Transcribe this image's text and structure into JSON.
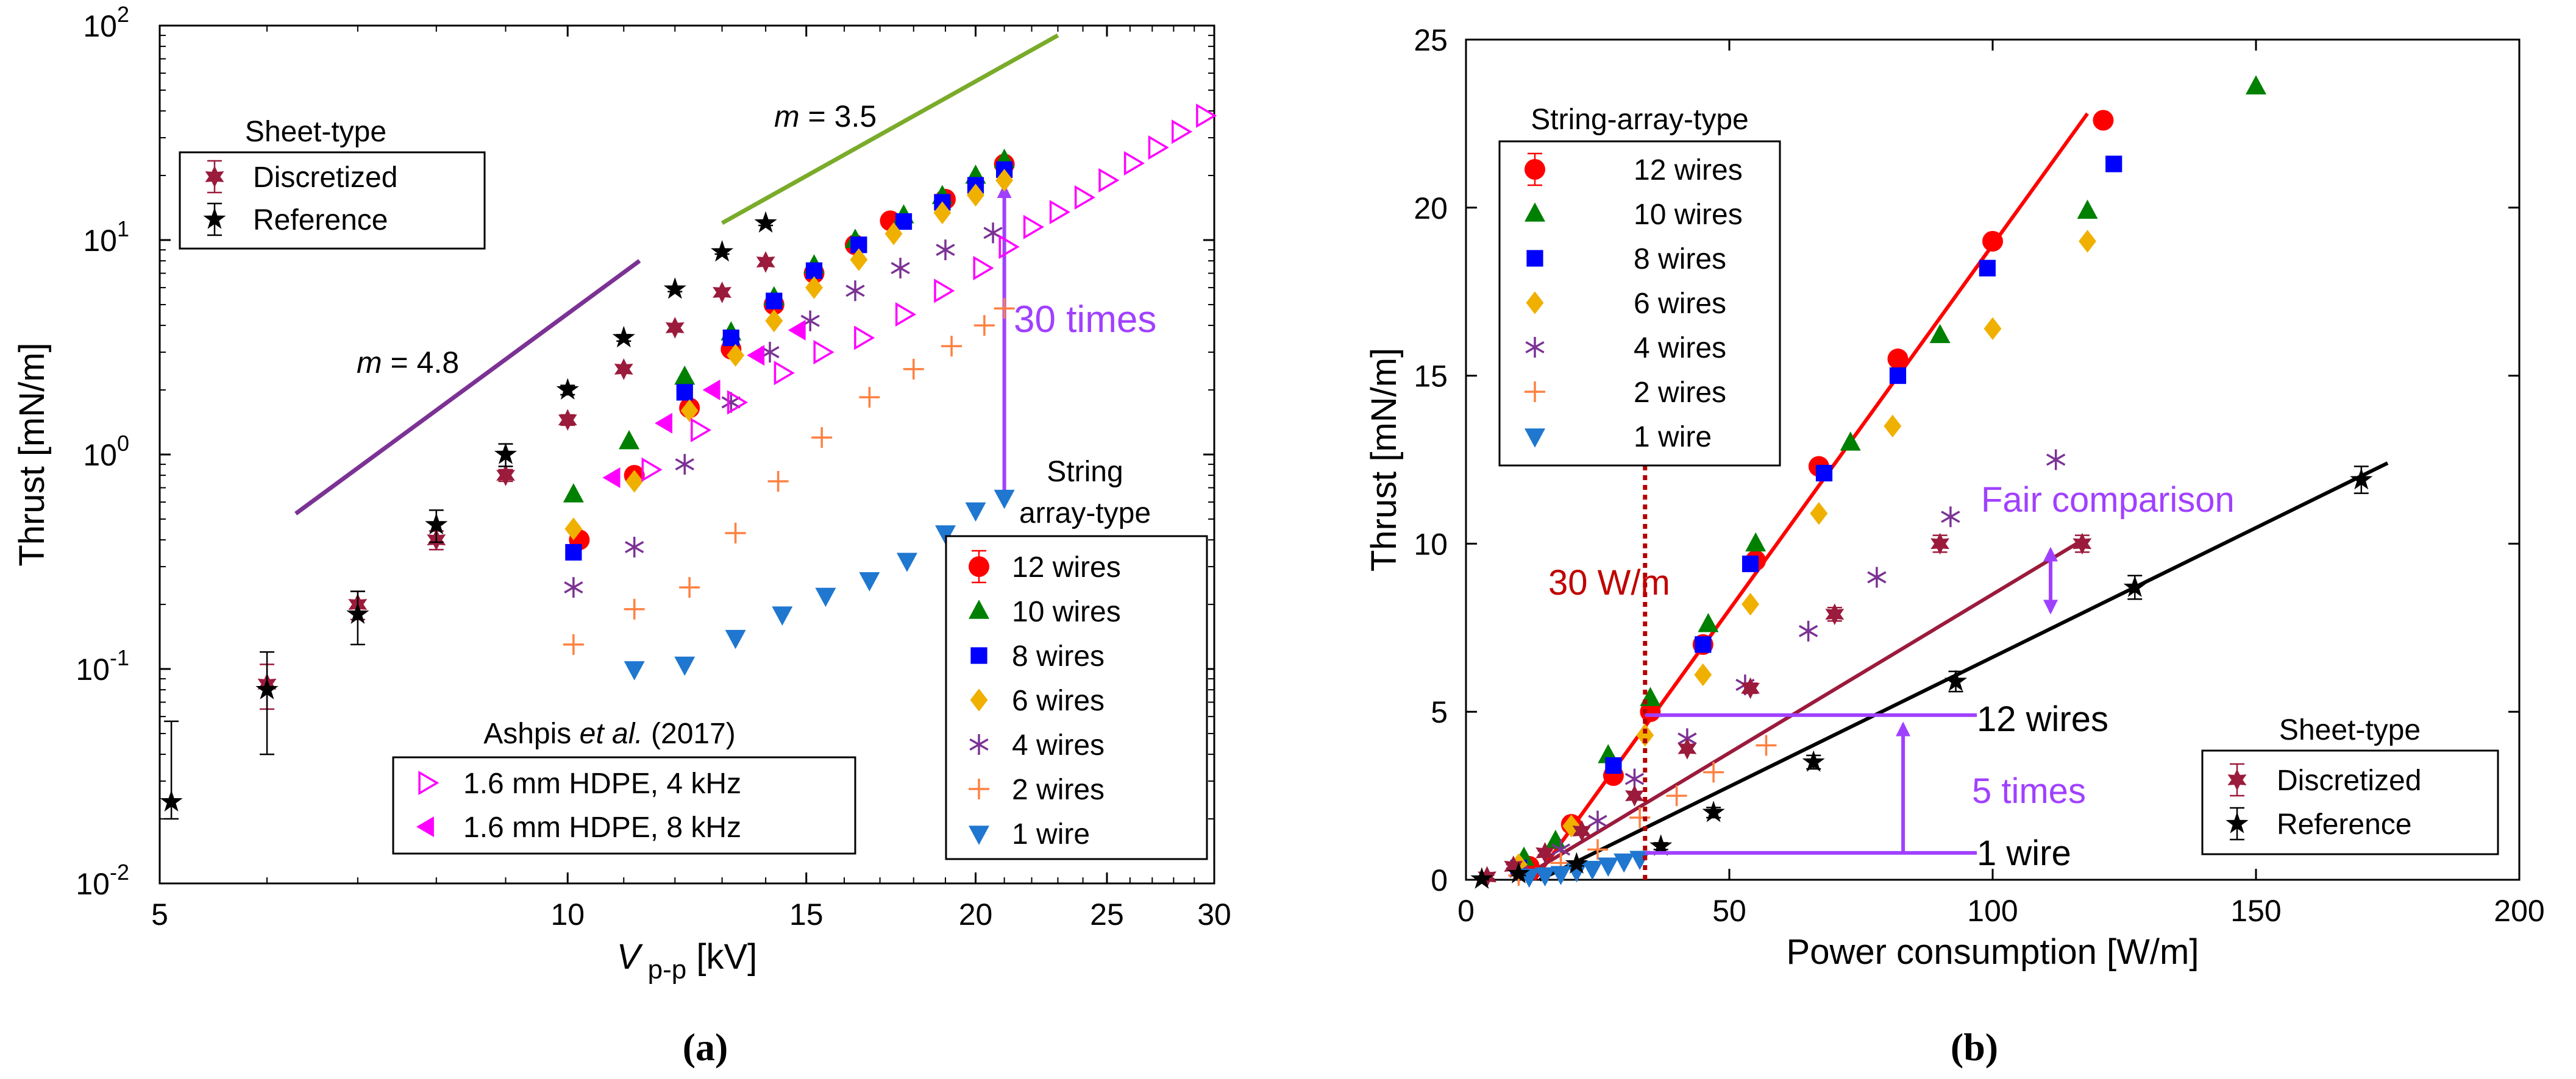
{
  "chart_data": [
    {
      "id": "a",
      "type": "scatter",
      "panel_label": "(a)",
      "xscale": "log",
      "yscale": "log",
      "xlim": [
        5,
        30
      ],
      "ylim": [
        0.01,
        100
      ],
      "xlabel_main": "V",
      "xlabel_sub": "p-p",
      "xlabel_unit": " [kV]",
      "ylabel": "Thrust [mN/m]",
      "xticks": [
        5,
        10,
        15,
        20,
        25,
        30
      ],
      "xtick_labels": [
        "5",
        "10",
        "15",
        "20",
        "25",
        "30"
      ],
      "yticks": [
        0.01,
        0.1,
        1,
        10,
        100
      ],
      "ytick_base": "10",
      "ytick_exps": [
        "-2",
        "-1",
        "0",
        "1",
        "2"
      ],
      "legend_sheet_title": "Sheet-type",
      "legend_string_title_1": "String",
      "legend_string_title_2": "array-type",
      "legend_ashpis_title_prefix": "Ashpis ",
      "legend_ashpis_title_etal": "et al.",
      "legend_ashpis_title_suffix": " (2017)",
      "series": [
        {
          "name": "Discretized",
          "group": "sheet",
          "marker": "hexstar",
          "color": "#9b1b3c",
          "x": [
            6.0,
            7.0,
            8.0,
            9.0,
            10.0,
            11.0,
            12.0,
            13.0,
            14.0
          ],
          "y": [
            0.085,
            0.2,
            0.4,
            0.8,
            1.45,
            2.5,
            3.9,
            5.7,
            7.9
          ],
          "err": [
            0.02,
            0.03,
            0.04,
            0.05,
            0.08,
            0.1,
            0.15,
            0.2,
            0.25
          ]
        },
        {
          "name": "Reference",
          "group": "sheet",
          "marker": "star",
          "color": "#000000",
          "x": [
            5.1,
            6.0,
            7.0,
            8.0,
            9.0,
            10.0,
            11.0,
            12.0,
            13.0,
            14.0
          ],
          "y": [
            0.024,
            0.08,
            0.18,
            0.47,
            1.0,
            2.0,
            3.5,
            5.9,
            8.8,
            12.0
          ],
          "err": [
            0.033,
            0.04,
            0.05,
            0.08,
            0.12,
            0.1,
            0.12,
            0.15,
            0.2,
            0.3
          ]
        },
        {
          "name": "12 wires",
          "group": "string",
          "marker": "circle",
          "color": "#ff0000",
          "x": [
            10.2,
            11.2,
            12.3,
            13.2,
            14.2,
            15.2,
            16.3,
            17.3,
            19.0,
            21.0
          ],
          "y": [
            0.4,
            0.8,
            1.65,
            3.1,
            5.0,
            7.0,
            9.5,
            12.3,
            15.5,
            22.6
          ]
        },
        {
          "name": "10 wires",
          "group": "string",
          "marker": "triangle-up",
          "color": "#008000",
          "x": [
            10.1,
            11.1,
            12.2,
            13.2,
            14.2,
            15.2,
            16.3,
            17.7,
            18.9,
            20.0,
            21.0
          ],
          "y": [
            0.65,
            1.15,
            2.3,
            3.7,
            5.4,
            7.6,
            10.0,
            13.0,
            16.0,
            19.9,
            23.6
          ]
        },
        {
          "name": "8 wires",
          "group": "string",
          "marker": "square",
          "color": "#0000ff",
          "x": [
            10.1,
            12.2,
            13.2,
            14.2,
            15.2,
            16.4,
            17.7,
            18.9,
            20.0,
            21.0
          ],
          "y": [
            0.35,
            1.95,
            3.5,
            5.2,
            7.2,
            9.5,
            12.2,
            15.0,
            18.0,
            21.3
          ]
        },
        {
          "name": "6 wires",
          "group": "string",
          "marker": "diamond",
          "color": "#f0b000",
          "x": [
            10.1,
            11.2,
            12.3,
            13.3,
            14.2,
            15.2,
            16.4,
            17.4,
            18.9,
            20.0,
            21.0
          ],
          "y": [
            0.45,
            0.75,
            1.6,
            2.9,
            4.2,
            6.0,
            8.1,
            10.7,
            13.4,
            16.2,
            19.0
          ]
        },
        {
          "name": "4 wires",
          "group": "string",
          "marker": "asterisk",
          "color": "#7b3294",
          "x": [
            10.1,
            11.2,
            12.2,
            13.2,
            14.1,
            15.1,
            16.3,
            17.6,
            19.0,
            20.6
          ],
          "y": [
            0.24,
            0.37,
            0.9,
            1.75,
            3.0,
            4.2,
            5.8,
            7.4,
            9.0,
            10.8
          ]
        },
        {
          "name": "2 wires",
          "group": "string",
          "marker": "plus",
          "color": "#ff8040",
          "x": [
            10.1,
            11.2,
            12.3,
            13.3,
            14.3,
            15.4,
            16.7,
            18.0,
            19.2,
            20.3,
            21.0
          ],
          "y": [
            0.13,
            0.19,
            0.24,
            0.43,
            0.75,
            1.2,
            1.85,
            2.5,
            3.2,
            4.0,
            4.8
          ]
        },
        {
          "name": "1 wire",
          "group": "string",
          "marker": "triangle-down",
          "color": "#1f77d0",
          "x": [
            11.2,
            12.2,
            13.3,
            14.4,
            15.5,
            16.7,
            17.8,
            19.0,
            20.0,
            21.0
          ],
          "y": [
            0.1,
            0.105,
            0.14,
            0.18,
            0.22,
            0.26,
            0.32,
            0.43,
            0.55,
            0.63
          ]
        },
        {
          "name": "1.6 mm HDPE, 4 kHz",
          "group": "ashpis",
          "marker": "tri-right-open",
          "color": "#ff00ff",
          "x": [
            11.5,
            12.5,
            13.3,
            14.4,
            15.4,
            16.5,
            17.7,
            18.9,
            20.2,
            21.1,
            22.0,
            23.0,
            24.0,
            25.0,
            26.1,
            27.2,
            28.3,
            29.5
          ],
          "y": [
            0.85,
            1.3,
            1.75,
            2.4,
            3.0,
            3.5,
            4.5,
            5.8,
            7.4,
            9.3,
            11.5,
            13.5,
            15.8,
            19.0,
            22.8,
            27.0,
            32.0,
            38.0
          ]
        },
        {
          "name": "1.6 mm HDPE, 8 kHz",
          "group": "ashpis",
          "marker": "tri-left",
          "color": "#ff00ff",
          "x": [
            10.8,
            11.8,
            12.8,
            13.8,
            14.8
          ],
          "y": [
            0.78,
            1.4,
            2.0,
            2.9,
            3.8
          ]
        }
      ],
      "annotations": {
        "slope1_m": "m",
        "slope1_value": " = 4.8",
        "slope2_m": "m",
        "slope2_value": " = 3.5",
        "times_label": "30 times",
        "slope1_line": {
          "x": [
            6.3,
            11.3
          ],
          "y": [
            0.53,
            8.0
          ]
        },
        "slope2_line": {
          "x": [
            13.0,
            23.0
          ],
          "y": [
            12.0,
            90.0
          ]
        },
        "arrow": {
          "x": 21.0,
          "y_from": 0.63,
          "y_to": 19.0
        }
      }
    },
    {
      "id": "b",
      "type": "scatter",
      "panel_label": "(b)",
      "xscale": "linear",
      "yscale": "linear",
      "xlim": [
        0,
        200
      ],
      "ylim": [
        0,
        25
      ],
      "xlabel": "Power consumption [W/m]",
      "ylabel": "Thrust [mN/m]",
      "xticks": [
        0,
        50,
        100,
        150,
        200
      ],
      "xtick_labels": [
        "0",
        "50",
        "100",
        "150",
        "200"
      ],
      "yticks": [
        0,
        5,
        10,
        15,
        20,
        25
      ],
      "ytick_labels": [
        "0",
        "5",
        "10",
        "15",
        "20",
        "25"
      ],
      "legend_string_title": "String-array-type",
      "legend_sheet_title": "Sheet-type",
      "series": [
        {
          "name": "12 wires",
          "group": "string",
          "marker": "circle",
          "color": "#ff0000",
          "x": [
            12,
            20,
            28,
            35,
            45,
            55,
            67,
            82,
            100,
            121
          ],
          "y": [
            0.4,
            1.65,
            3.1,
            5.0,
            7.0,
            9.5,
            12.3,
            15.5,
            19.0,
            22.6
          ]
        },
        {
          "name": "10 wires",
          "group": "string",
          "marker": "triangle-up",
          "color": "#008000",
          "x": [
            11,
            17,
            27,
            35,
            46,
            55,
            73,
            90,
            118,
            150
          ],
          "y": [
            0.65,
            1.15,
            3.7,
            5.4,
            7.6,
            10.0,
            13.0,
            16.2,
            19.9,
            23.6
          ]
        },
        {
          "name": "8 wires",
          "group": "string",
          "marker": "square",
          "color": "#0000ff",
          "x": [
            10,
            28,
            45,
            54,
            68,
            82,
            99,
            123
          ],
          "y": [
            0.35,
            3.4,
            7.0,
            9.4,
            12.1,
            15.0,
            18.2,
            21.3
          ]
        },
        {
          "name": "6 wires",
          "group": "string",
          "marker": "diamond",
          "color": "#f0b000",
          "x": [
            10,
            20,
            34,
            45,
            54,
            67,
            81,
            100,
            118
          ],
          "y": [
            0.45,
            1.6,
            4.3,
            6.1,
            8.2,
            10.9,
            13.5,
            16.4,
            19.0
          ]
        },
        {
          "name": "4 wires",
          "group": "string",
          "marker": "asterisk",
          "color": "#7b3294",
          "x": [
            10,
            18,
            25,
            32,
            42,
            53,
            65,
            78,
            92,
            112
          ],
          "y": [
            0.24,
            0.9,
            1.75,
            3.0,
            4.2,
            5.8,
            7.4,
            9.0,
            10.8,
            12.5
          ]
        },
        {
          "name": "2 wires",
          "group": "string",
          "marker": "plus",
          "color": "#ff8040",
          "x": [
            10,
            18,
            25,
            33,
            40,
            47,
            57
          ],
          "y": [
            0.13,
            0.5,
            0.9,
            1.85,
            2.5,
            3.2,
            4.0
          ]
        },
        {
          "name": "1 wire",
          "group": "string",
          "marker": "triangle-down",
          "color": "#1f77d0",
          "x": [
            12,
            15,
            18,
            21,
            24,
            27,
            30,
            33
          ],
          "y": [
            0.1,
            0.14,
            0.18,
            0.26,
            0.33,
            0.43,
            0.55,
            0.63
          ]
        },
        {
          "name": "Discretized",
          "group": "sheet",
          "marker": "hexstar",
          "color": "#9b1b3c",
          "x": [
            4,
            9,
            15,
            22,
            32,
            42,
            54,
            70,
            90,
            117
          ],
          "y": [
            0.085,
            0.4,
            0.8,
            1.45,
            2.5,
            3.9,
            5.7,
            7.9,
            10.0,
            10.0
          ],
          "err": [
            0.05,
            0.05,
            0.06,
            0.08,
            0.1,
            0.12,
            0.15,
            0.2,
            0.25,
            0.25
          ]
        },
        {
          "name": "Reference",
          "group": "sheet",
          "marker": "star",
          "color": "#000000",
          "x": [
            3,
            10,
            21,
            37,
            47,
            66,
            93,
            127,
            170
          ],
          "y": [
            0.02,
            0.18,
            0.47,
            1.0,
            2.0,
            3.5,
            5.9,
            8.7,
            11.9
          ],
          "err": [
            0.05,
            0.05,
            0.06,
            0.1,
            0.15,
            0.2,
            0.3,
            0.35,
            0.4
          ]
        }
      ],
      "fits": [
        {
          "name": "12-wire fit",
          "color": "#ff0000",
          "x": [
            13,
            118
          ],
          "y": [
            0.0,
            22.8
          ]
        },
        {
          "name": "Discretized fit",
          "color": "#9b1b3c",
          "x": [
            10,
            117
          ],
          "y": [
            0.0,
            10.1
          ]
        },
        {
          "name": "Reference fit",
          "color": "#000000",
          "x": [
            14,
            175
          ],
          "y": [
            0.0,
            12.4
          ]
        }
      ],
      "annotations": {
        "power_label": "30 W/m",
        "power_line_x": 34,
        "fair_label": "Fair comparison",
        "fair_arrow": {
          "x": 111,
          "y_from": 7.8,
          "y_to": 10.0
        },
        "times_label": "5 times",
        "times_arrow": {
          "x": 83,
          "y_from": 0.75,
          "y_to": 4.8
        },
        "h12": {
          "x": [
            34,
            97
          ],
          "y": 4.9
        },
        "h1": {
          "x": [
            34,
            97
          ],
          "y": 0.8
        },
        "lbl12": "12 wires",
        "lbl1": "1 wire"
      }
    }
  ]
}
